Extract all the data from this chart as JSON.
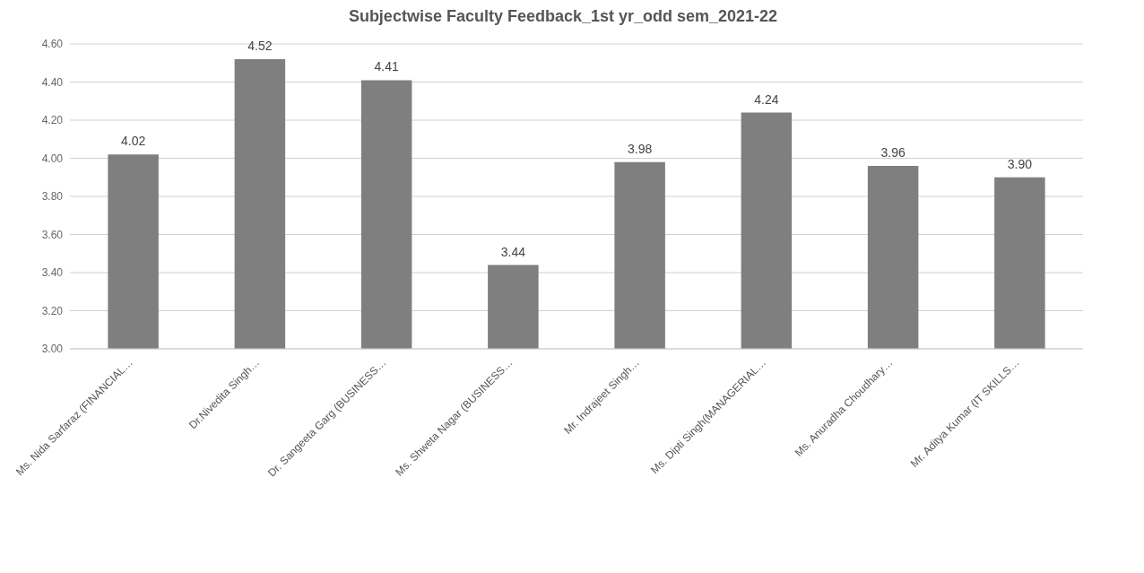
{
  "chart_data": {
    "type": "bar",
    "title": "Subjectwise Faculty Feedback_1st yr_odd sem_2021-22",
    "categories": [
      "Ms. Nida Sarfaraz (FINANCIAL…",
      "Dr.Nivedita Singh…",
      "Dr. Sangeeta Garg (BUSINESS…",
      "Ms. Shweta Nagar  (BUSINESS…",
      "Mr. Indrajeet Singh…",
      "Ms. Dipti Singh(MANAGERIAL…",
      "Ms. Anuradha Choudhary…",
      "Mr. Aditya Kumar (IT SKILLS…"
    ],
    "values": [
      4.02,
      4.52,
      4.41,
      3.44,
      3.98,
      4.24,
      3.96,
      3.9
    ],
    "value_labels": [
      "4.02",
      "4.52",
      "4.41",
      "3.44",
      "3.98",
      "4.24",
      "3.96",
      "3.90"
    ],
    "color": "#7f7f7f",
    "ylim": [
      3.0,
      4.6
    ],
    "yticks": [
      {
        "value": 3.0,
        "label": "3.00"
      },
      {
        "value": 3.2,
        "label": "3.20"
      },
      {
        "value": 3.4,
        "label": "3.40"
      },
      {
        "value": 3.6,
        "label": "3.60"
      },
      {
        "value": 3.8,
        "label": "3.80"
      },
      {
        "value": 4.0,
        "label": "4.00"
      },
      {
        "value": 4.2,
        "label": "4.20"
      },
      {
        "value": 4.4,
        "label": "4.40"
      },
      {
        "value": 4.6,
        "label": "4.60"
      }
    ],
    "grid": "y"
  }
}
